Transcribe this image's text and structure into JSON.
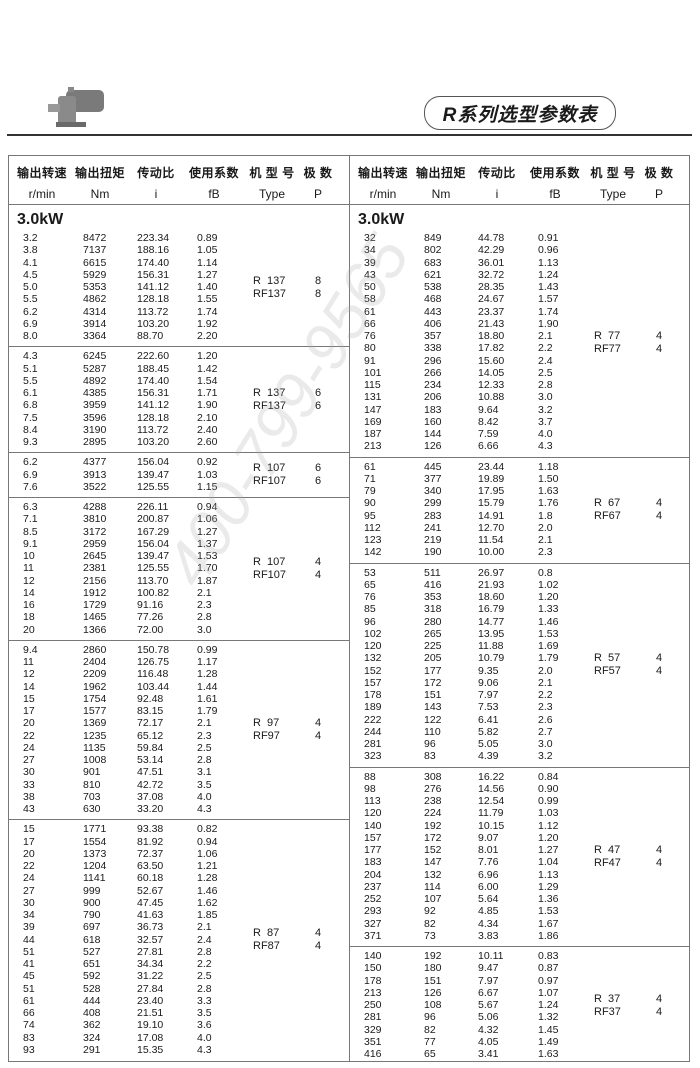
{
  "header": {
    "title": "R系列选型参数表",
    "product_image": "gear-motor"
  },
  "columns": [
    {
      "cn": "输出转速",
      "en": "r/min"
    },
    {
      "cn": "输出扭矩",
      "en": "Nm"
    },
    {
      "cn": "传动比",
      "en": "i"
    },
    {
      "cn": "使用系数",
      "en": "fB"
    },
    {
      "cn": "机 型 号",
      "en": "Type"
    },
    {
      "cn": "极  数",
      "en": "P"
    }
  ],
  "watermark": "400-799-9565",
  "left": {
    "power": "3.0kW",
    "groups": [
      {
        "types": [
          "R  137",
          "RF137"
        ],
        "poles": [
          "8",
          "8"
        ],
        "rows": [
          [
            "3.2",
            "8472",
            "223.34",
            "0.89"
          ],
          [
            "3.8",
            "7137",
            "188.16",
            "1.05"
          ],
          [
            "4.1",
            "6615",
            "174.40",
            "1.14"
          ],
          [
            "4.5",
            "5929",
            "156.31",
            "1.27"
          ],
          [
            "5.0",
            "5353",
            "141.12",
            "1.40"
          ],
          [
            "5.5",
            "4862",
            "128.18",
            "1.55"
          ],
          [
            "6.2",
            "4314",
            "113.72",
            "1.74"
          ],
          [
            "6.9",
            "3914",
            "103.20",
            "1.92"
          ],
          [
            "8.0",
            "3364",
            "88.70",
            "2.20"
          ]
        ]
      },
      {
        "types": [
          "R  137",
          "RF137"
        ],
        "poles": [
          "6",
          "6"
        ],
        "rows": [
          [
            "4.3",
            "6245",
            "222.60",
            "1.20"
          ],
          [
            "5.1",
            "5287",
            "188.45",
            "1.42"
          ],
          [
            "5.5",
            "4892",
            "174.40",
            "1.54"
          ],
          [
            "6.1",
            "4385",
            "156.31",
            "1.71"
          ],
          [
            "6.8",
            "3959",
            "141.12",
            "1.90"
          ],
          [
            "7.5",
            "3596",
            "128.18",
            "2.10"
          ],
          [
            "8.4",
            "3190",
            "113.72",
            "2.40"
          ],
          [
            "9.3",
            "2895",
            "103.20",
            "2.60"
          ]
        ]
      },
      {
        "types": [
          "R  107",
          "RF107"
        ],
        "poles": [
          "6",
          "6"
        ],
        "rows": [
          [
            "6.2",
            "4377",
            "156.04",
            "0.92"
          ],
          [
            "6.9",
            "3913",
            "139.47",
            "1.03"
          ],
          [
            "7.6",
            "3522",
            "125.55",
            "1.15"
          ]
        ]
      },
      {
        "types": [
          "R  107",
          "RF107"
        ],
        "poles": [
          "4",
          "4"
        ],
        "rows": [
          [
            "6.3",
            "4288",
            "226.11",
            "0.94"
          ],
          [
            "7.1",
            "3810",
            "200.87",
            "1.06"
          ],
          [
            "8.5",
            "3172",
            "167.29",
            "1.27"
          ],
          [
            "9.1",
            "2959",
            "156.04",
            "1.37"
          ],
          [
            "10",
            "2645",
            "139.47",
            "1.53"
          ],
          [
            "11",
            "2381",
            "125.55",
            "1.70"
          ],
          [
            "12",
            "2156",
            "113.70",
            "1.87"
          ],
          [
            "14",
            "1912",
            "100.82",
            "2.1"
          ],
          [
            "16",
            "1729",
            "91.16",
            "2.3"
          ],
          [
            "18",
            "1465",
            "77.26",
            "2.8"
          ],
          [
            "20",
            "1366",
            "72.00",
            "3.0"
          ]
        ]
      },
      {
        "types": [
          "R  97",
          "RF97"
        ],
        "poles": [
          "4",
          "4"
        ],
        "rows": [
          [
            "9.4",
            "2860",
            "150.78",
            "0.99"
          ],
          [
            "11",
            "2404",
            "126.75",
            "1.17"
          ],
          [
            "12",
            "2209",
            "116.48",
            "1.28"
          ],
          [
            "14",
            "1962",
            "103.44",
            "1.44"
          ],
          [
            "15",
            "1754",
            "92.48",
            "1.61"
          ],
          [
            "17",
            "1577",
            "83.15",
            "1.79"
          ],
          [
            "20",
            "1369",
            "72.17",
            "2.1"
          ],
          [
            "22",
            "1235",
            "65.12",
            "2.3"
          ],
          [
            "24",
            "1135",
            "59.84",
            "2.5"
          ],
          [
            "27",
            "1008",
            "53.14",
            "2.8"
          ],
          [
            "30",
            "901",
            "47.51",
            "3.1"
          ],
          [
            "33",
            "810",
            "42.72",
            "3.5"
          ],
          [
            "38",
            "703",
            "37.08",
            "4.0"
          ],
          [
            "43",
            "630",
            "33.20",
            "4.3"
          ]
        ]
      },
      {
        "types": [
          "R  87",
          "RF87"
        ],
        "poles": [
          "4",
          "4"
        ],
        "rows": [
          [
            "15",
            "1771",
            "93.38",
            "0.82"
          ],
          [
            "17",
            "1554",
            "81.92",
            "0.94"
          ],
          [
            "20",
            "1373",
            "72.37",
            "1.06"
          ],
          [
            "22",
            "1204",
            "63.50",
            "1.21"
          ],
          [
            "24",
            "1141",
            "60.18",
            "1.28"
          ],
          [
            "27",
            "999",
            "52.67",
            "1.46"
          ],
          [
            "30",
            "900",
            "47.45",
            "1.62"
          ],
          [
            "34",
            "790",
            "41.63",
            "1.85"
          ],
          [
            "39",
            "697",
            "36.73",
            "2.1"
          ],
          [
            "44",
            "618",
            "32.57",
            "2.4"
          ],
          [
            "51",
            "527",
            "27.81",
            "2.8"
          ],
          [
            "41",
            "651",
            "34.34",
            "2.2"
          ],
          [
            "45",
            "592",
            "31.22",
            "2.5"
          ],
          [
            "51",
            "528",
            "27.84",
            "2.8"
          ],
          [
            "61",
            "444",
            "23.40",
            "3.3"
          ],
          [
            "66",
            "408",
            "21.51",
            "3.5"
          ],
          [
            "74",
            "362",
            "19.10",
            "3.6"
          ],
          [
            "83",
            "324",
            "17.08",
            "4.0"
          ],
          [
            "93",
            "291",
            "15.35",
            "4.3"
          ]
        ]
      }
    ]
  },
  "right": {
    "power": "3.0kW",
    "groups": [
      {
        "types": [
          "R  77",
          "RF77"
        ],
        "poles": [
          "4",
          "4"
        ],
        "rows": [
          [
            "32",
            "849",
            "44.78",
            "0.91"
          ],
          [
            "34",
            "802",
            "42.29",
            "0.96"
          ],
          [
            "39",
            "683",
            "36.01",
            "1.13"
          ],
          [
            "43",
            "621",
            "32.72",
            "1.24"
          ],
          [
            "50",
            "538",
            "28.35",
            "1.43"
          ],
          [
            "58",
            "468",
            "24.67",
            "1.57"
          ],
          [
            "61",
            "443",
            "23.37",
            "1.74"
          ],
          [
            "66",
            "406",
            "21.43",
            "1.90"
          ],
          [
            "76",
            "357",
            "18.80",
            "2.1"
          ],
          [
            "80",
            "338",
            "17.82",
            "2.2"
          ],
          [
            "91",
            "296",
            "15.60",
            "2.4"
          ],
          [
            "101",
            "266",
            "14.05",
            "2.5"
          ],
          [
            "115",
            "234",
            "12.33",
            "2.8"
          ],
          [
            "131",
            "206",
            "10.88",
            "3.0"
          ],
          [
            "147",
            "183",
            "9.64",
            "3.2"
          ],
          [
            "169",
            "160",
            "8.42",
            "3.7"
          ],
          [
            "187",
            "144",
            "7.59",
            "4.0"
          ],
          [
            "213",
            "126",
            "6.66",
            "4.3"
          ]
        ]
      },
      {
        "types": [
          "R  67",
          "RF67"
        ],
        "poles": [
          "4",
          "4"
        ],
        "rows": [
          [
            "61",
            "445",
            "23.44",
            "1.18"
          ],
          [
            "71",
            "377",
            "19.89",
            "1.50"
          ],
          [
            "79",
            "340",
            "17.95",
            "1.63"
          ],
          [
            "90",
            "299",
            "15.79",
            "1.76"
          ],
          [
            "95",
            "283",
            "14.91",
            "1.8"
          ],
          [
            "112",
            "241",
            "12.70",
            "2.0"
          ],
          [
            "123",
            "219",
            "11.54",
            "2.1"
          ],
          [
            "142",
            "190",
            "10.00",
            "2.3"
          ]
        ]
      },
      {
        "types": [
          "R  57",
          "RF57"
        ],
        "poles": [
          "4",
          "4"
        ],
        "rows": [
          [
            "53",
            "511",
            "26.97",
            "0.8"
          ],
          [
            "65",
            "416",
            "21.93",
            "1.02"
          ],
          [
            "76",
            "353",
            "18.60",
            "1.20"
          ],
          [
            "85",
            "318",
            "16.79",
            "1.33"
          ],
          [
            "96",
            "280",
            "14.77",
            "1.46"
          ],
          [
            "102",
            "265",
            "13.95",
            "1.53"
          ],
          [
            "120",
            "225",
            "11.88",
            "1.69"
          ],
          [
            "132",
            "205",
            "10.79",
            "1.79"
          ],
          [
            "152",
            "177",
            "9.35",
            "2.0"
          ],
          [
            "157",
            "172",
            "9.06",
            "2.1"
          ],
          [
            "178",
            "151",
            "7.97",
            "2.2"
          ],
          [
            "189",
            "143",
            "7.53",
            "2.3"
          ],
          [
            "222",
            "122",
            "6.41",
            "2.6"
          ],
          [
            "244",
            "110",
            "5.82",
            "2.7"
          ],
          [
            "281",
            "96",
            "5.05",
            "3.0"
          ],
          [
            "323",
            "83",
            "4.39",
            "3.2"
          ]
        ]
      },
      {
        "types": [
          "R  47",
          "RF47"
        ],
        "poles": [
          "4",
          "4"
        ],
        "rows": [
          [
            "88",
            "308",
            "16.22",
            "0.84"
          ],
          [
            "98",
            "276",
            "14.56",
            "0.90"
          ],
          [
            "113",
            "238",
            "12.54",
            "0.99"
          ],
          [
            "120",
            "224",
            "11.79",
            "1.03"
          ],
          [
            "140",
            "192",
            "10.15",
            "1.12"
          ],
          [
            "157",
            "172",
            "9.07",
            "1.20"
          ],
          [
            "177",
            "152",
            "8.01",
            "1.27"
          ],
          [
            "183",
            "147",
            "7.76",
            "1.04"
          ],
          [
            "204",
            "132",
            "6.96",
            "1.13"
          ],
          [
            "237",
            "114",
            "6.00",
            "1.29"
          ],
          [
            "252",
            "107",
            "5.64",
            "1.36"
          ],
          [
            "293",
            "92",
            "4.85",
            "1.53"
          ],
          [
            "327",
            "82",
            "4.34",
            "1.67"
          ],
          [
            "371",
            "73",
            "3.83",
            "1.86"
          ]
        ]
      },
      {
        "types": [
          "R  37",
          "RF37"
        ],
        "poles": [
          "4",
          "4"
        ],
        "rows": [
          [
            "140",
            "192",
            "10.11",
            "0.83"
          ],
          [
            "150",
            "180",
            "9.47",
            "0.87"
          ],
          [
            "178",
            "151",
            "7.97",
            "0.97"
          ],
          [
            "213",
            "126",
            "6.67",
            "1.07"
          ],
          [
            "250",
            "108",
            "5.67",
            "1.24"
          ],
          [
            "281",
            "96",
            "5.06",
            "1.32"
          ],
          [
            "329",
            "82",
            "4.32",
            "1.45"
          ],
          [
            "351",
            "77",
            "4.05",
            "1.49"
          ],
          [
            "416",
            "65",
            "3.41",
            "1.63"
          ]
        ]
      }
    ]
  }
}
